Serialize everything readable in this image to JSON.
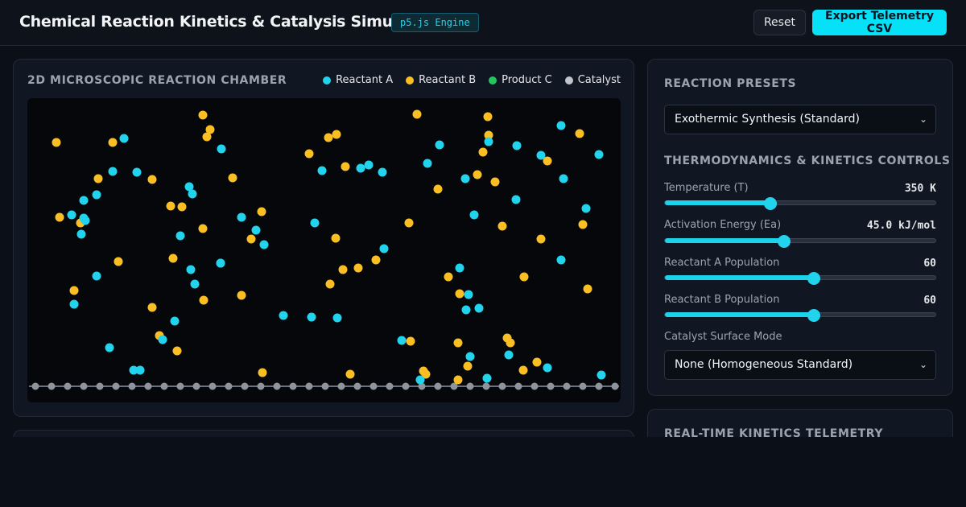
{
  "header": {
    "title": "Chemical Reaction Kinetics & Catalysis Simulator",
    "engine_badge": "p5.js Engine",
    "reset_label": "Reset",
    "export_label": "Export Telemetry CSV"
  },
  "chamber": {
    "title": "2D MICROSCOPIC REACTION CHAMBER",
    "legend": [
      {
        "label": "Reactant A",
        "color": "#22d3ee"
      },
      {
        "label": "Reactant B",
        "color": "#fbbf24"
      },
      {
        "label": "Product C",
        "color": "#22c55e"
      },
      {
        "label": "Catalyst",
        "color": "#9ca3af"
      }
    ]
  },
  "controls": {
    "presets_title": "REACTION PRESETS",
    "preset_selected": "Exothermic Synthesis (Standard)",
    "thermo_title": "THERMODYNAMICS & KINETICS CONTROLS",
    "sliders": [
      {
        "label": "Temperature (T)",
        "value": "350 K",
        "fraction": 0.39
      },
      {
        "label": "Activation Energy (Ea)",
        "value": "45.0 kJ/mol",
        "fraction": 0.44
      },
      {
        "label": "Reactant A Population",
        "value": "60",
        "fraction": 0.55
      },
      {
        "label": "Reactant B Population",
        "value": "60",
        "fraction": 0.55
      }
    ],
    "catalyst_label": "Catalyst Surface Mode",
    "catalyst_selected": "None (Homogeneous Standard)"
  },
  "telemetry": {
    "title": "REAL-TIME KINETICS TELEMETRY"
  },
  "colors": {
    "accent": "#06e1f7",
    "reactant_a": "#22d3ee",
    "reactant_b": "#fbbf24",
    "product_c": "#22c55e",
    "catalyst": "#9ca3af"
  }
}
